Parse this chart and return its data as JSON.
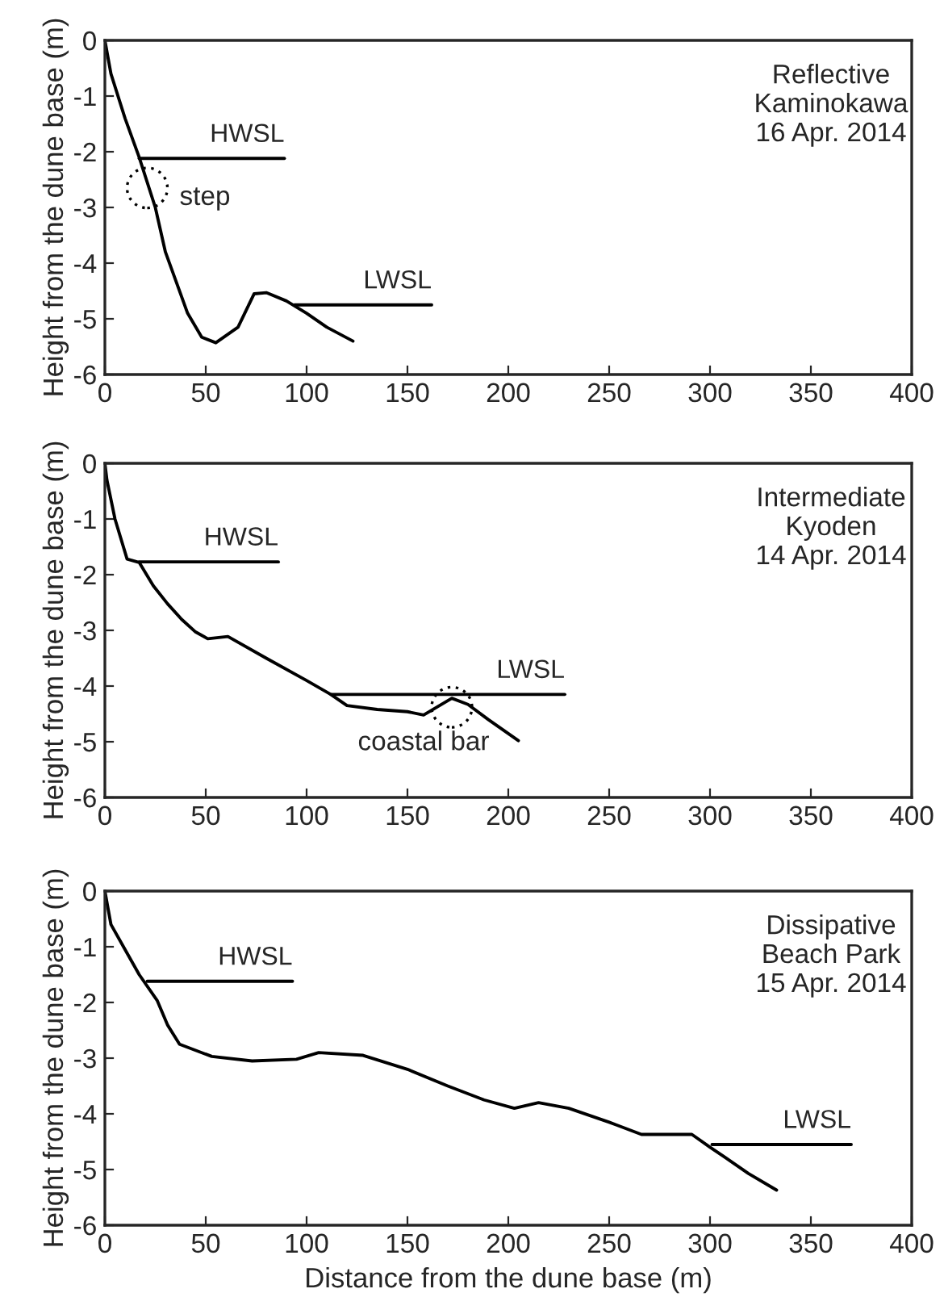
{
  "chart_data": [
    {
      "type": "line",
      "title": "Reflective\nKaminokawa\n16 Apr. 2014",
      "ylabel": "Height from the dune base (m)",
      "xlim": [
        0,
        400
      ],
      "ylim": [
        -6,
        0
      ],
      "xticks": [
        0,
        50,
        100,
        150,
        200,
        250,
        300,
        350,
        400
      ],
      "yticks": [
        -6,
        -5,
        -4,
        -3,
        -2,
        -1,
        0
      ],
      "grid": false,
      "legend": false,
      "marker": "none",
      "line_style": "solid",
      "annotations": [
        {
          "text": "step",
          "x": 21,
          "y": -2.65
        }
      ],
      "series": [
        {
          "color": "#000000",
          "x": [
            0,
            3,
            10,
            17,
            25,
            30,
            38,
            41,
            48,
            55,
            66,
            74,
            80,
            90,
            100,
            110,
            123
          ],
          "values": [
            0,
            -0.6,
            -1.4,
            -2.1,
            -3.0,
            -3.8,
            -4.6,
            -4.9,
            -5.33,
            -5.43,
            -5.15,
            -4.55,
            -4.53,
            -4.68,
            -4.9,
            -5.15,
            -5.4
          ]
        },
        {
          "name": "HWSL",
          "color": "#000000",
          "x": [
            17,
            89
          ],
          "values": [
            -2.12,
            -2.12
          ]
        },
        {
          "name": "LWSL",
          "color": "#000000",
          "x": [
            94,
            162
          ],
          "values": [
            -4.75,
            -4.75
          ]
        }
      ]
    },
    {
      "type": "line",
      "title": "Intermediate\nKyoden\n14 Apr. 2014",
      "ylabel": "Height from the dune base (m)",
      "xlim": [
        0,
        400
      ],
      "ylim": [
        -6,
        0
      ],
      "xticks": [
        0,
        50,
        100,
        150,
        200,
        250,
        300,
        350,
        400
      ],
      "yticks": [
        -6,
        -5,
        -4,
        -3,
        -2,
        -1,
        0
      ],
      "grid": false,
      "legend": false,
      "marker": "none",
      "line_style": "solid",
      "annotations": [
        {
          "text": "coastal bar",
          "x": 172,
          "y": -4.38
        }
      ],
      "series": [
        {
          "color": "#000000",
          "x": [
            0,
            1,
            5,
            11,
            17,
            24,
            31,
            38,
            45,
            51,
            61,
            80,
            100,
            112,
            120,
            135,
            150,
            158,
            172,
            180,
            190,
            205
          ],
          "values": [
            0,
            -0.3,
            -1.0,
            -1.72,
            -1.78,
            -2.2,
            -2.52,
            -2.8,
            -3.03,
            -3.15,
            -3.11,
            -3.5,
            -3.9,
            -4.15,
            -4.35,
            -4.42,
            -4.46,
            -4.52,
            -4.22,
            -4.33,
            -4.6,
            -4.98
          ]
        },
        {
          "name": "HWSL",
          "color": "#000000",
          "x": [
            17,
            86
          ],
          "values": [
            -1.77,
            -1.77
          ]
        },
        {
          "name": "LWSL",
          "color": "#000000",
          "x": [
            112,
            228
          ],
          "values": [
            -4.15,
            -4.15
          ]
        }
      ]
    },
    {
      "type": "line",
      "title": "Dissipative\nBeach Park\n15 Apr. 2014",
      "xlabel": "Distance from the dune base (m)",
      "ylabel": "Height from the dune base (m)",
      "xlim": [
        0,
        400
      ],
      "ylim": [
        -6,
        0
      ],
      "xticks": [
        0,
        50,
        100,
        150,
        200,
        250,
        300,
        350,
        400
      ],
      "yticks": [
        -6,
        -5,
        -4,
        -3,
        -2,
        -1,
        0
      ],
      "grid": false,
      "legend": false,
      "marker": "none",
      "line_style": "solid",
      "series": [
        {
          "color": "#000000",
          "x": [
            0,
            3,
            10,
            17,
            26,
            31,
            37,
            53,
            73,
            95,
            106,
            128,
            150,
            170,
            188,
            203,
            215,
            230,
            250,
            266,
            291,
            300,
            307,
            319,
            333
          ],
          "values": [
            0,
            -0.6,
            -1.05,
            -1.5,
            -1.97,
            -2.4,
            -2.75,
            -2.97,
            -3.05,
            -3.02,
            -2.9,
            -2.95,
            -3.2,
            -3.5,
            -3.75,
            -3.9,
            -3.8,
            -3.9,
            -4.15,
            -4.37,
            -4.37,
            -4.6,
            -4.77,
            -5.07,
            -5.37
          ]
        },
        {
          "name": "HWSL",
          "color": "#000000",
          "x": [
            21,
            93
          ],
          "values": [
            -1.62,
            -1.62
          ]
        },
        {
          "name": "LWSL",
          "color": "#000000",
          "x": [
            301,
            370
          ],
          "values": [
            -4.55,
            -4.55
          ]
        }
      ]
    }
  ]
}
